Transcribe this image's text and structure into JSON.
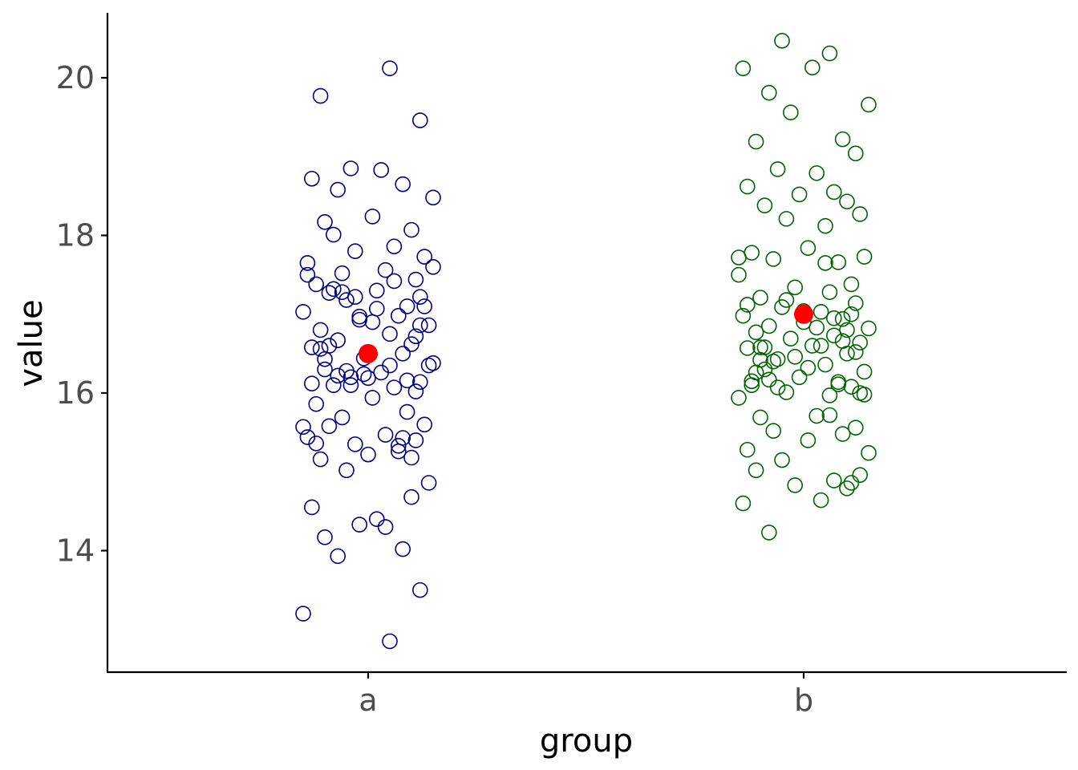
{
  "chart_data": {
    "type": "scatter",
    "xlabel": "group",
    "ylabel": "value",
    "categories": [
      "a",
      "b"
    ],
    "y_ticks": [
      14,
      16,
      18,
      20
    ],
    "ylim": [
      12.5,
      20.8
    ],
    "grid": false,
    "series": [
      {
        "group": "a",
        "color": "#000080",
        "jitter": [
          -0.15,
          -0.02,
          0.08,
          -0.1,
          0.05,
          0.12,
          -0.07,
          0.02,
          -0.13,
          0.1,
          -0.05,
          0.14,
          -0.11,
          0.0,
          0.07,
          -0.03,
          0.11,
          -0.14,
          0.04,
          -0.09,
          0.13,
          -0.06,
          0.09,
          -0.12,
          0.01,
          0.06,
          -0.08,
          0.12,
          -0.04,
          0.03,
          -0.1,
          0.15,
          -0.01,
          0.08,
          -0.13,
          0.1,
          -0.07,
          0.05,
          -0.11,
          0.14,
          -0.02,
          0.07,
          -0.15,
          0.09,
          -0.05,
          0.12,
          -0.09,
          0.02,
          -0.12,
          0.11,
          -0.06,
          0.04,
          -0.14,
          0.13,
          -0.03,
          0.06,
          -0.08,
          0.1,
          -0.1,
          0.01,
          0.15,
          -0.07,
          0.08,
          -0.13,
          0.03,
          -0.04,
          0.12,
          -0.11,
          0.05,
          -0.01,
          0.14,
          -0.09,
          0.07,
          -0.15,
          0.02,
          -0.06,
          0.11,
          -0.12,
          0.09,
          -0.02,
          0.13,
          -0.1,
          0.0,
          0.06,
          -0.14,
          0.1,
          -0.05,
          0.04,
          -0.08,
          0.12,
          -0.13,
          0.08,
          -0.03,
          0.15,
          -0.11,
          0.01,
          -0.07,
          0.11,
          -0.04,
          0.05
        ],
        "values": [
          13.2,
          14.33,
          14.02,
          14.17,
          12.85,
          13.5,
          13.93,
          14.4,
          14.55,
          14.68,
          15.02,
          14.86,
          15.16,
          15.22,
          15.26,
          15.35,
          15.4,
          15.44,
          15.47,
          15.58,
          15.6,
          15.69,
          15.76,
          15.86,
          15.94,
          16.07,
          16.1,
          16.14,
          16.2,
          16.26,
          16.3,
          16.38,
          16.44,
          16.5,
          16.58,
          16.62,
          16.67,
          16.75,
          16.8,
          16.86,
          16.93,
          16.98,
          17.03,
          17.1,
          17.18,
          17.22,
          17.27,
          17.3,
          17.38,
          17.44,
          17.52,
          17.56,
          17.65,
          17.73,
          17.8,
          17.86,
          18.01,
          18.07,
          18.17,
          18.24,
          18.48,
          18.58,
          18.65,
          18.72,
          18.83,
          18.85,
          19.46,
          19.77,
          20.12,
          16.24,
          16.35,
          16.6,
          15.33,
          15.57,
          17.07,
          17.28,
          16.02,
          15.36,
          16.16,
          16.97,
          17.1,
          16.43,
          16.19,
          17.42,
          17.5,
          15.18,
          16.28,
          14.3,
          17.32,
          16.86,
          16.12,
          15.43,
          17.22,
          17.6,
          16.56,
          16.9,
          16.22,
          16.72,
          16.1,
          16.35
        ],
        "mean": 16.5
      },
      {
        "group": "b",
        "color": "#006400",
        "jitter": [
          -0.14,
          0.04,
          -0.08,
          0.1,
          -0.02,
          0.13,
          -0.11,
          0.07,
          -0.05,
          0.15,
          -0.13,
          0.01,
          0.09,
          -0.07,
          0.12,
          -0.1,
          0.03,
          -0.15,
          0.06,
          -0.04,
          0.11,
          -0.12,
          0.08,
          -0.01,
          0.14,
          -0.09,
          0.05,
          -0.06,
          0.1,
          -0.13,
          0.02,
          0.13,
          -0.03,
          0.07,
          -0.11,
          0.15,
          -0.08,
          0.0,
          0.09,
          -0.14,
          0.04,
          -0.05,
          0.12,
          -0.1,
          0.06,
          -0.02,
          0.11,
          -0.15,
          0.08,
          -0.07,
          0.14,
          -0.12,
          0.01,
          0.05,
          -0.04,
          0.13,
          -0.09,
          0.1,
          -0.01,
          0.07,
          -0.13,
          0.03,
          -0.06,
          0.12,
          -0.11,
          0.09,
          -0.03,
          0.15,
          -0.08,
          0.02,
          -0.14,
          0.06,
          -0.05,
          0.11,
          -0.1,
          0.04,
          -0.12,
          0.08,
          0.0,
          -0.07,
          0.13,
          -0.09,
          0.05,
          -0.15,
          0.1,
          -0.02,
          0.14,
          -0.11,
          0.07,
          -0.04,
          0.12,
          -0.06,
          0.03,
          -0.13,
          0.09,
          0.01,
          -0.1,
          0.06,
          -0.08,
          0.11
        ],
        "values": [
          14.6,
          14.64,
          14.23,
          14.79,
          14.83,
          14.96,
          15.02,
          14.89,
          15.15,
          15.24,
          15.28,
          15.4,
          15.48,
          15.52,
          15.56,
          15.69,
          15.71,
          15.94,
          15.97,
          16.01,
          16.08,
          16.1,
          16.14,
          16.2,
          16.27,
          16.3,
          16.36,
          16.43,
          16.5,
          16.57,
          16.6,
          16.64,
          16.69,
          16.73,
          16.77,
          16.82,
          16.85,
          16.9,
          16.94,
          16.98,
          17.03,
          17.09,
          17.14,
          17.21,
          17.28,
          17.34,
          17.38,
          17.5,
          17.66,
          17.7,
          17.73,
          17.78,
          17.84,
          18.12,
          18.21,
          18.27,
          18.38,
          18.43,
          18.52,
          18.55,
          18.62,
          18.79,
          18.84,
          19.04,
          19.19,
          19.22,
          19.56,
          19.66,
          19.81,
          20.13,
          20.12,
          20.31,
          20.47,
          14.86,
          16.58,
          16.6,
          16.15,
          16.11,
          17.04,
          16.4,
          16.0,
          16.58,
          17.65,
          17.72,
          16.8,
          16.46,
          15.98,
          16.26,
          16.95,
          17.18,
          16.52,
          16.07,
          16.83,
          17.12,
          16.66,
          16.32,
          16.42,
          15.72,
          16.17,
          17.0
        ],
        "mean": 17.0
      }
    ],
    "mean_color": "#ff0000"
  }
}
